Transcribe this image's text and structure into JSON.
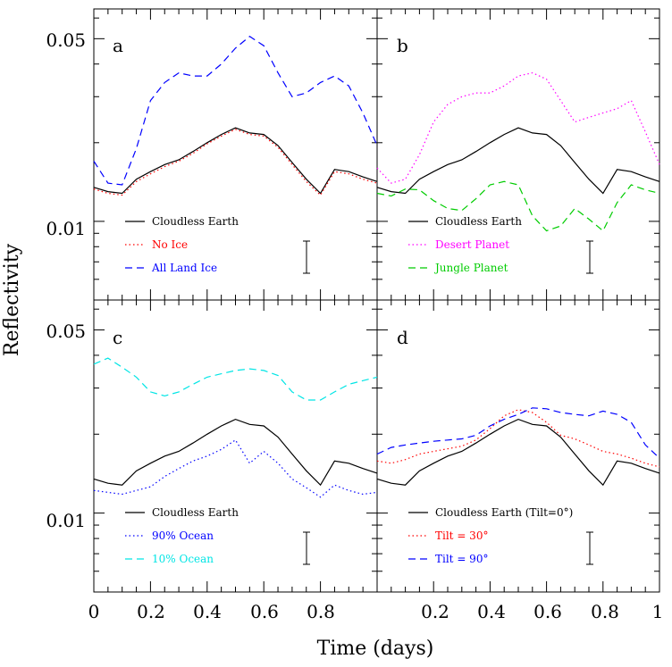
{
  "axes": {
    "ylabel": "Reflectivity",
    "xlabel": "Time (days)",
    "y_ticks": [
      "0.05",
      "0.01"
    ],
    "x_ticks_left": [
      "0",
      "0.2",
      "0.4",
      "0.6",
      "0.8"
    ],
    "x_ticks_right": [
      "0.2",
      "0.4",
      "0.6",
      "0.8",
      "1"
    ]
  },
  "colors": {
    "black": "#000000",
    "red": "#ff0000",
    "blue": "#0000ff",
    "magenta": "#ff00ff",
    "green": "#00cc00",
    "cyan": "#00e5e5"
  },
  "chart_data": [
    {
      "type": "line",
      "panel": "a",
      "x_range": [
        0,
        1
      ],
      "y_range": [
        0.005,
        0.065
      ],
      "y_scale": "log",
      "series": [
        {
          "name": "Cloudless Earth",
          "color": "#000000",
          "dash": "solid",
          "x": [
            0,
            0.05,
            0.1,
            0.15,
            0.2,
            0.25,
            0.3,
            0.35,
            0.4,
            0.45,
            0.5,
            0.55,
            0.6,
            0.65,
            0.7,
            0.75,
            0.8,
            0.85,
            0.9,
            0.95,
            1.0
          ],
          "y": [
            0.0135,
            0.013,
            0.0128,
            0.0145,
            0.0155,
            0.0165,
            0.0172,
            0.0185,
            0.02,
            0.0215,
            0.0228,
            0.0218,
            0.0215,
            0.0195,
            0.0168,
            0.0145,
            0.0128,
            0.0158,
            0.0155,
            0.0148,
            0.0142
          ]
        },
        {
          "name": "No Ice",
          "color": "#ff0000",
          "dash": "dotted",
          "x": [
            0,
            0.05,
            0.1,
            0.15,
            0.2,
            0.25,
            0.3,
            0.35,
            0.4,
            0.45,
            0.5,
            0.55,
            0.6,
            0.65,
            0.7,
            0.75,
            0.8,
            0.85,
            0.9,
            0.95,
            1.0
          ],
          "y": [
            0.0133,
            0.0128,
            0.0126,
            0.0142,
            0.0152,
            0.0162,
            0.017,
            0.0182,
            0.0198,
            0.0212,
            0.0225,
            0.0215,
            0.0212,
            0.0192,
            0.0165,
            0.0142,
            0.0126,
            0.0155,
            0.0152,
            0.0145,
            0.014
          ]
        },
        {
          "name": "All Land Ice",
          "color": "#0000ff",
          "dash": "dashed",
          "x": [
            0,
            0.05,
            0.1,
            0.15,
            0.2,
            0.25,
            0.3,
            0.35,
            0.4,
            0.45,
            0.5,
            0.55,
            0.6,
            0.65,
            0.7,
            0.75,
            0.8,
            0.85,
            0.9,
            0.95,
            1.0
          ],
          "y": [
            0.017,
            0.014,
            0.0138,
            0.019,
            0.029,
            0.034,
            0.037,
            0.036,
            0.036,
            0.04,
            0.046,
            0.051,
            0.047,
            0.037,
            0.03,
            0.031,
            0.034,
            0.036,
            0.033,
            0.026,
            0.0195
          ]
        }
      ],
      "legend": [
        "Cloudless Earth",
        "No Ice",
        "All Land Ice"
      ]
    },
    {
      "type": "line",
      "panel": "b",
      "x_range": [
        0,
        1
      ],
      "y_range": [
        0.005,
        0.065
      ],
      "y_scale": "log",
      "series": [
        {
          "name": "Cloudless Earth",
          "color": "#000000",
          "dash": "solid",
          "x": [
            0,
            0.05,
            0.1,
            0.15,
            0.2,
            0.25,
            0.3,
            0.35,
            0.4,
            0.45,
            0.5,
            0.55,
            0.6,
            0.65,
            0.7,
            0.75,
            0.8,
            0.85,
            0.9,
            0.95,
            1.0
          ],
          "y": [
            0.0135,
            0.013,
            0.0128,
            0.0145,
            0.0155,
            0.0165,
            0.0172,
            0.0185,
            0.02,
            0.0215,
            0.0228,
            0.0218,
            0.0215,
            0.0195,
            0.0168,
            0.0145,
            0.0128,
            0.0158,
            0.0155,
            0.0148,
            0.0142
          ]
        },
        {
          "name": "Desert Planet",
          "color": "#ff00ff",
          "dash": "dotted",
          "x": [
            0,
            0.05,
            0.1,
            0.15,
            0.2,
            0.25,
            0.3,
            0.35,
            0.4,
            0.45,
            0.5,
            0.55,
            0.6,
            0.65,
            0.7,
            0.75,
            0.8,
            0.85,
            0.9,
            0.95,
            1.0
          ],
          "y": [
            0.016,
            0.014,
            0.0145,
            0.018,
            0.024,
            0.028,
            0.03,
            0.031,
            0.031,
            0.033,
            0.036,
            0.037,
            0.035,
            0.029,
            0.024,
            0.025,
            0.026,
            0.027,
            0.029,
            0.022,
            0.0165
          ]
        },
        {
          "name": "Jungle Planet",
          "color": "#00cc00",
          "dash": "dashed",
          "x": [
            0,
            0.05,
            0.1,
            0.15,
            0.2,
            0.25,
            0.3,
            0.35,
            0.4,
            0.45,
            0.5,
            0.55,
            0.6,
            0.65,
            0.7,
            0.75,
            0.8,
            0.85,
            0.9,
            0.95,
            1.0
          ],
          "y": [
            0.0128,
            0.0125,
            0.0133,
            0.0132,
            0.012,
            0.0112,
            0.011,
            0.0122,
            0.0138,
            0.0142,
            0.0138,
            0.0105,
            0.0092,
            0.0096,
            0.0112,
            0.0102,
            0.0092,
            0.0118,
            0.0138,
            0.0132,
            0.0128
          ]
        }
      ],
      "legend": [
        "Cloudless Earth",
        "Desert Planet",
        "Jungle Planet"
      ]
    },
    {
      "type": "line",
      "panel": "c",
      "x_range": [
        0,
        1
      ],
      "y_range": [
        0.005,
        0.065
      ],
      "y_scale": "log",
      "series": [
        {
          "name": "Cloudless Earth",
          "color": "#000000",
          "dash": "solid",
          "x": [
            0,
            0.05,
            0.1,
            0.15,
            0.2,
            0.25,
            0.3,
            0.35,
            0.4,
            0.45,
            0.5,
            0.55,
            0.6,
            0.65,
            0.7,
            0.75,
            0.8,
            0.85,
            0.9,
            0.95,
            1.0
          ],
          "y": [
            0.0135,
            0.013,
            0.0128,
            0.0145,
            0.0155,
            0.0165,
            0.0172,
            0.0185,
            0.02,
            0.0215,
            0.0228,
            0.0218,
            0.0215,
            0.0195,
            0.0168,
            0.0145,
            0.0128,
            0.0158,
            0.0155,
            0.0148,
            0.0142
          ]
        },
        {
          "name": "90% Ocean",
          "color": "#0000ff",
          "dash": "dotted",
          "x": [
            0,
            0.05,
            0.1,
            0.15,
            0.2,
            0.25,
            0.3,
            0.35,
            0.4,
            0.45,
            0.5,
            0.55,
            0.6,
            0.65,
            0.7,
            0.75,
            0.8,
            0.85,
            0.9,
            0.95,
            1.0
          ],
          "y": [
            0.0122,
            0.012,
            0.0118,
            0.0122,
            0.0126,
            0.0138,
            0.0148,
            0.0158,
            0.0165,
            0.0175,
            0.019,
            0.0155,
            0.0172,
            0.0155,
            0.0135,
            0.0125,
            0.0115,
            0.0128,
            0.0122,
            0.0118,
            0.012
          ]
        },
        {
          "name": "10% Ocean",
          "color": "#00e5e5",
          "dash": "dashed",
          "x": [
            0,
            0.05,
            0.1,
            0.15,
            0.2,
            0.25,
            0.3,
            0.35,
            0.4,
            0.45,
            0.5,
            0.55,
            0.6,
            0.65,
            0.7,
            0.75,
            0.8,
            0.85,
            0.9,
            0.95,
            1.0
          ],
          "y": [
            0.037,
            0.039,
            0.036,
            0.033,
            0.029,
            0.028,
            0.029,
            0.031,
            0.033,
            0.034,
            0.035,
            0.0355,
            0.035,
            0.0335,
            0.029,
            0.027,
            0.027,
            0.029,
            0.031,
            0.032,
            0.033
          ]
        }
      ],
      "legend": [
        "Cloudless Earth",
        "90% Ocean",
        "10% Ocean"
      ]
    },
    {
      "type": "line",
      "panel": "d",
      "x_range": [
        0,
        1
      ],
      "y_range": [
        0.005,
        0.065
      ],
      "y_scale": "log",
      "series": [
        {
          "name": "Cloudless Earth (Tilt=0°)",
          "color": "#000000",
          "dash": "solid",
          "x": [
            0,
            0.05,
            0.1,
            0.15,
            0.2,
            0.25,
            0.3,
            0.35,
            0.4,
            0.45,
            0.5,
            0.55,
            0.6,
            0.65,
            0.7,
            0.75,
            0.8,
            0.85,
            0.9,
            0.95,
            1.0
          ],
          "y": [
            0.0135,
            0.013,
            0.0128,
            0.0145,
            0.0155,
            0.0165,
            0.0172,
            0.0185,
            0.02,
            0.0215,
            0.0228,
            0.0218,
            0.0215,
            0.0195,
            0.0168,
            0.0145,
            0.0128,
            0.0158,
            0.0155,
            0.0148,
            0.0142
          ]
        },
        {
          "name": "Tilt = 30°",
          "color": "#ff0000",
          "dash": "dotted",
          "x": [
            0,
            0.05,
            0.1,
            0.15,
            0.2,
            0.25,
            0.3,
            0.35,
            0.4,
            0.45,
            0.5,
            0.55,
            0.6,
            0.65,
            0.7,
            0.75,
            0.8,
            0.85,
            0.9,
            0.95,
            1.0
          ],
          "y": [
            0.0158,
            0.0155,
            0.016,
            0.0168,
            0.0172,
            0.0176,
            0.018,
            0.019,
            0.021,
            0.0235,
            0.0248,
            0.0242,
            0.0222,
            0.0198,
            0.0192,
            0.0182,
            0.0172,
            0.0168,
            0.0162,
            0.0155,
            0.015
          ]
        },
        {
          "name": "Tilt = 90°",
          "color": "#0000ff",
          "dash": "dashed",
          "x": [
            0,
            0.05,
            0.1,
            0.15,
            0.2,
            0.25,
            0.3,
            0.35,
            0.4,
            0.45,
            0.5,
            0.55,
            0.6,
            0.65,
            0.7,
            0.75,
            0.8,
            0.85,
            0.9,
            0.95,
            1.0
          ],
          "y": [
            0.0168,
            0.0178,
            0.0182,
            0.0185,
            0.0188,
            0.019,
            0.0192,
            0.0198,
            0.0215,
            0.0228,
            0.0238,
            0.0252,
            0.025,
            0.0242,
            0.0238,
            0.0235,
            0.0245,
            0.0238,
            0.0222,
            0.0182,
            0.0162
          ]
        }
      ],
      "legend": [
        "Cloudless Earth (Tilt=0°)",
        "Tilt = 30°",
        "Tilt = 90°"
      ]
    }
  ]
}
